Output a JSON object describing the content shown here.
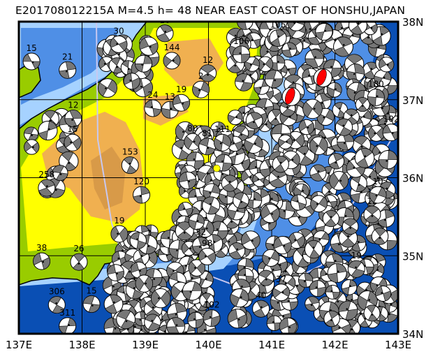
{
  "title": "E201708012215A  M=4.5  h=  48  NEAR EAST COAST OF HONSHU,JAPAN",
  "map": {
    "lon_range": [
      137,
      143
    ],
    "lat_range": [
      34,
      38
    ],
    "lon_labels": [
      "137E",
      "138E",
      "139E",
      "140E",
      "141E",
      "142E",
      "143E"
    ],
    "lat_labels": [
      "38N",
      "37N",
      "36N",
      "35N",
      "34N"
    ],
    "grid": true,
    "colors": {
      "deep_ocean": "#0a4fb4",
      "mid_ocean": "#4f8fe6",
      "shelf": "#a6d2ff",
      "lowland": "#99cc00",
      "upland": "#ffff00",
      "highland": "#f0b050",
      "mountain": "#d89a48",
      "plate_boundary": "#c8c8f0",
      "compressional_quadrant": "#777777",
      "highlighted_mechanism": "#ff0000",
      "event_marker": "#ffff00"
    }
  },
  "event_marker": {
    "lon": 140.13,
    "lat": 36.12
  },
  "highlighted_mechanisms": [
    {
      "lon": 141.31,
      "lat": 37.04
    },
    {
      "lon": 141.81,
      "lat": 37.28
    }
  ],
  "labeled_mechanisms": [
    {
      "lon": 137.2,
      "lat": 37.49,
      "depth": "15"
    },
    {
      "lon": 137.77,
      "lat": 37.38,
      "depth": "21"
    },
    {
      "lon": 138.58,
      "lat": 37.71,
      "depth": "30"
    },
    {
      "lon": 139.31,
      "lat": 37.85,
      "depth": "16"
    },
    {
      "lon": 139.42,
      "lat": 37.5,
      "depth": "144"
    },
    {
      "lon": 139.99,
      "lat": 37.34,
      "depth": "12"
    },
    {
      "lon": 139.88,
      "lat": 37.13,
      "depth": "2"
    },
    {
      "lon": 139.12,
      "lat": 36.89,
      "depth": "24"
    },
    {
      "lon": 139.39,
      "lat": 36.87,
      "depth": "13"
    },
    {
      "lon": 139.57,
      "lat": 36.96,
      "depth": "19"
    },
    {
      "lon": 137.86,
      "lat": 36.76,
      "depth": "12"
    },
    {
      "lon": 137.85,
      "lat": 36.45,
      "depth": "15"
    },
    {
      "lon": 138.76,
      "lat": 36.16,
      "depth": "153"
    },
    {
      "lon": 139.75,
      "lat": 36.46,
      "depth": "80"
    },
    {
      "lon": 139.98,
      "lat": 36.4,
      "depth": "81"
    },
    {
      "lon": 140.22,
      "lat": 36.45,
      "depth": "111"
    },
    {
      "lon": 140.52,
      "lat": 37.58,
      "depth": "106"
    },
    {
      "lon": 141.1,
      "lat": 37.79,
      "depth": "105"
    },
    {
      "lon": 137.36,
      "lat": 34.93,
      "depth": "38"
    },
    {
      "lon": 137.95,
      "lat": 34.92,
      "depth": "26"
    },
    {
      "lon": 138.59,
      "lat": 35.28,
      "depth": "19"
    },
    {
      "lon": 137.6,
      "lat": 34.37,
      "depth": "306"
    },
    {
      "lon": 137.77,
      "lat": 34.1,
      "depth": "311"
    },
    {
      "lon": 138.15,
      "lat": 34.38,
      "depth": "15"
    },
    {
      "lon": 138.94,
      "lat": 35.78,
      "depth": "120"
    },
    {
      "lon": 140.05,
      "lat": 34.2,
      "depth": "102"
    },
    {
      "lon": 140.83,
      "lat": 34.32,
      "depth": "40"
    },
    {
      "lon": 141.15,
      "lat": 34.53,
      "depth": "37"
    },
    {
      "lon": 142.59,
      "lat": 35.53,
      "depth": "12"
    },
    {
      "lon": 142.68,
      "lat": 35.78,
      "depth": "10"
    },
    {
      "lon": 142.34,
      "lat": 34.83,
      "depth": "19"
    },
    {
      "lon": 142.65,
      "lat": 37.03,
      "depth": "180"
    },
    {
      "lon": 142.89,
      "lat": 36.58,
      "depth": "102"
    },
    {
      "lon": 139.88,
      "lat": 35.13,
      "depth": "32"
    },
    {
      "lon": 139.98,
      "lat": 34.99,
      "depth": "98"
    },
    {
      "lon": 137.44,
      "lat": 35.87,
      "depth": "258"
    }
  ]
}
